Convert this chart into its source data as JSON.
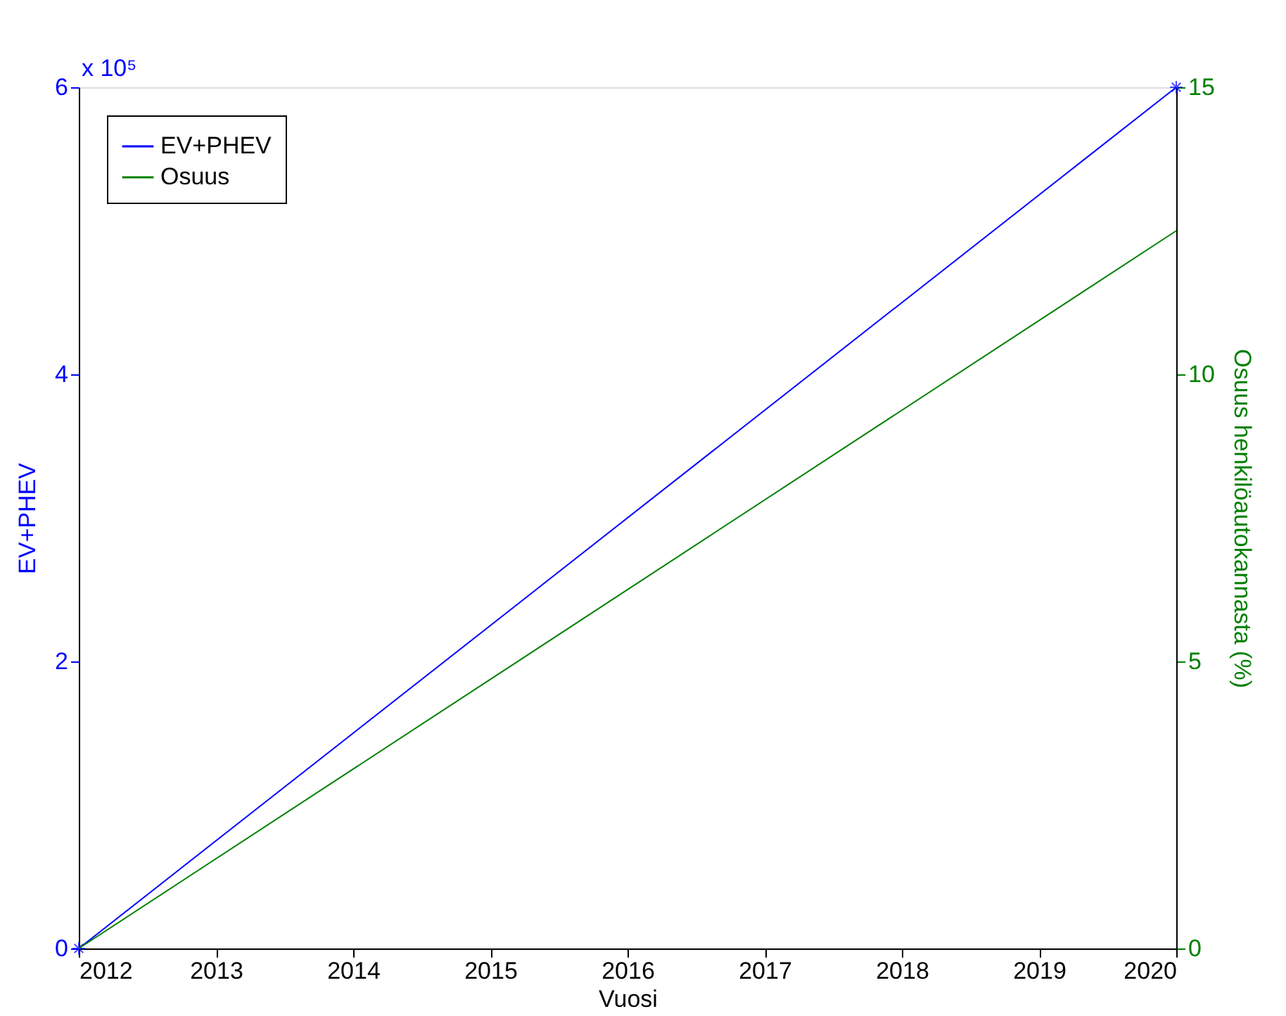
{
  "chart_data": {
    "type": "line",
    "xlabel": "Vuosi",
    "ylabel": "EV+PHEV",
    "y2label": "Osuus henkilöautokannasta (%)",
    "x": [
      2012,
      2020
    ],
    "series": [
      {
        "name": "EV+PHEV",
        "color": "#0000ff",
        "values": [
          0,
          6
        ],
        "marker": "cross"
      },
      {
        "name": "Osuus",
        "color": "#008000",
        "values": [
          0,
          12.5
        ],
        "axis": "y2"
      }
    ],
    "xlim": [
      2012,
      2020
    ],
    "xticks": [
      2012,
      2013,
      2014,
      2015,
      2016,
      2017,
      2018,
      2019,
      2020
    ],
    "ylim": [
      0,
      6
    ],
    "yticks": [
      0,
      2,
      4,
      6
    ],
    "y2lim": [
      0,
      15
    ],
    "y2ticks": [
      0,
      5,
      10,
      15
    ],
    "annotations": [
      "x 10⁵"
    ],
    "grid": false,
    "legend": "top left",
    "line_style": "solid"
  }
}
